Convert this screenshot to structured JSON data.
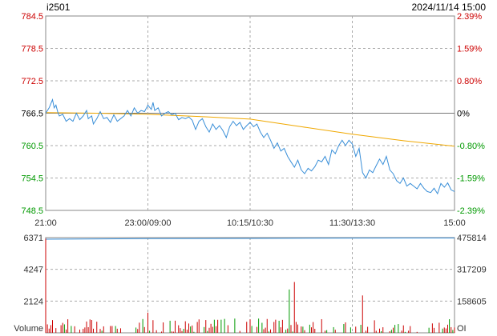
{
  "header": {
    "symbol": "i2501",
    "datetime": "2024/11/14 15:00"
  },
  "colors": {
    "up": "#cc0000",
    "down": "#009900",
    "neutral": "#000000",
    "price_line": "#3a8fd8",
    "avg_line": "#f0a800",
    "frame": "#888888",
    "grid": "#aaaaaa"
  },
  "chart_data": [
    {
      "type": "line",
      "title": "",
      "left_ticks": [
        "784.5",
        "778.5",
        "772.5",
        "766.5",
        "760.5",
        "754.5",
        "748.5"
      ],
      "right_ticks": [
        "2.39%",
        "1.59%",
        "0.80%",
        "0%",
        "-0.80%",
        "-1.59%",
        "-2.39%"
      ],
      "x_ticks": [
        "21:00",
        "23:00/09:00",
        "10:15/10:30",
        "11:30/13:30",
        "15:00"
      ],
      "ylim": [
        748.5,
        784.5
      ],
      "reference": 766.5,
      "x_range": [
        0,
        240
      ],
      "series": [
        {
          "role": "price",
          "points": [
            [
              0,
              766.5
            ],
            [
              2,
              767.5
            ],
            [
              4,
              769
            ],
            [
              5,
              767.5
            ],
            [
              6,
              768
            ],
            [
              7,
              766.8
            ],
            [
              8,
              766
            ],
            [
              10,
              766.3
            ],
            [
              12,
              765
            ],
            [
              14,
              765.5
            ],
            [
              16,
              765
            ],
            [
              18,
              766.5
            ],
            [
              20,
              765.3
            ],
            [
              22,
              766
            ],
            [
              24,
              767
            ],
            [
              25,
              765.5
            ],
            [
              27,
              766
            ],
            [
              28,
              764.5
            ],
            [
              30,
              765.5
            ],
            [
              32,
              766.8
            ],
            [
              34,
              765.5
            ],
            [
              36,
              765.7
            ],
            [
              38,
              764.8
            ],
            [
              40,
              766.2
            ],
            [
              42,
              765
            ],
            [
              44,
              765.5
            ],
            [
              46,
              766
            ],
            [
              48,
              767
            ],
            [
              50,
              766
            ],
            [
              52,
              767.5
            ],
            [
              54,
              766.5
            ],
            [
              56,
              767
            ],
            [
              58,
              766.8
            ],
            [
              60,
              768
            ],
            [
              62,
              767.2
            ],
            [
              63,
              768.5
            ],
            [
              64,
              767
            ],
            [
              66,
              767.5
            ],
            [
              68,
              766
            ],
            [
              70,
              766.5
            ],
            [
              72,
              766.8
            ],
            [
              74,
              766.2
            ],
            [
              76,
              766.5
            ],
            [
              78,
              765.3
            ],
            [
              80,
              765.7
            ],
            [
              82,
              765.5
            ],
            [
              84,
              765.8
            ],
            [
              86,
              765.2
            ],
            [
              88,
              763.5
            ],
            [
              90,
              765
            ],
            [
              92,
              765.5
            ],
            [
              94,
              764
            ],
            [
              96,
              763
            ],
            [
              98,
              764.5
            ],
            [
              100,
              763.5
            ],
            [
              102,
              764.2
            ],
            [
              104,
              763.3
            ],
            [
              106,
              762
            ],
            [
              108,
              764
            ],
            [
              110,
              765
            ],
            [
              112,
              764.2
            ],
            [
              114,
              764.8
            ],
            [
              116,
              763.5
            ],
            [
              118,
              764.2
            ],
            [
              120,
              764.8
            ],
            [
              122,
              764
            ],
            [
              124,
              764.5
            ],
            [
              126,
              763
            ],
            [
              128,
              762
            ],
            [
              130,
              762.8
            ],
            [
              132,
              761.5
            ],
            [
              134,
              760
            ],
            [
              136,
              761
            ],
            [
              138,
              759.5
            ],
            [
              140,
              760
            ],
            [
              142,
              758.5
            ],
            [
              144,
              757.5
            ],
            [
              146,
              756.5
            ],
            [
              148,
              757.8
            ],
            [
              150,
              756
            ],
            [
              152,
              755.3
            ],
            [
              154,
              756.3
            ],
            [
              156,
              755.8
            ],
            [
              158,
              756.6
            ],
            [
              160,
              757.8
            ],
            [
              162,
              757.5
            ],
            [
              164,
              758.5
            ],
            [
              166,
              757
            ],
            [
              168,
              759.7
            ],
            [
              170,
              759
            ],
            [
              172,
              760.5
            ],
            [
              174,
              761.5
            ],
            [
              176,
              760.5
            ],
            [
              178,
              761.5
            ],
            [
              180,
              760.8
            ],
            [
              182,
              758.5
            ],
            [
              184,
              760
            ],
            [
              186,
              755.5
            ],
            [
              188,
              754.5
            ],
            [
              190,
              756
            ],
            [
              192,
              755.5
            ],
            [
              194,
              756.8
            ],
            [
              196,
              758
            ],
            [
              198,
              757
            ],
            [
              200,
              758.5
            ],
            [
              202,
              756
            ],
            [
              204,
              755.3
            ],
            [
              206,
              754
            ],
            [
              208,
              753.5
            ],
            [
              210,
              754.5
            ],
            [
              212,
              753
            ],
            [
              214,
              753.5
            ],
            [
              216,
              753
            ],
            [
              218,
              752.5
            ],
            [
              220,
              753.5
            ],
            [
              222,
              752.6
            ],
            [
              224,
              752
            ],
            [
              226,
              751.8
            ],
            [
              228,
              752.6
            ],
            [
              230,
              751.6
            ],
            [
              232,
              753.5
            ],
            [
              234,
              752.8
            ],
            [
              236,
              753.6
            ],
            [
              238,
              752.3
            ],
            [
              240,
              752
            ]
          ]
        },
        {
          "role": "average",
          "points": [
            [
              0,
              766.6
            ],
            [
              30,
              766.5
            ],
            [
              60,
              766.3
            ],
            [
              90,
              765.9
            ],
            [
              120,
              765.4
            ],
            [
              150,
              764
            ],
            [
              180,
              762.6
            ],
            [
              210,
              761.4
            ],
            [
              240,
              760.4
            ]
          ]
        }
      ]
    },
    {
      "type": "bar",
      "left_ticks": [
        "6371",
        "4247",
        "2124",
        "Volume"
      ],
      "right_ticks": [
        "475814",
        "317209",
        "158605",
        "OI"
      ],
      "ylim": [
        0,
        6371
      ],
      "oi": [
        [
          0,
          468000
        ],
        [
          60,
          470500
        ],
        [
          120,
          472000
        ],
        [
          180,
          473500
        ],
        [
          240,
          474000
        ]
      ]
    }
  ]
}
